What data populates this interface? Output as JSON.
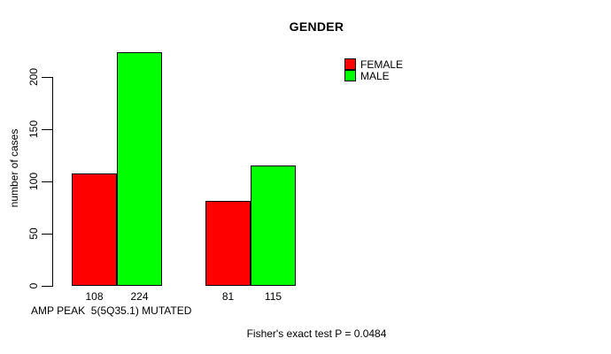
{
  "title": "GENDER",
  "legend": {
    "items": [
      {
        "label": "FEMALE",
        "color": "#ff0000"
      },
      {
        "label": "MALE",
        "color": "#00ff00"
      }
    ]
  },
  "y_axis": {
    "label": "number of cases",
    "ticks": [
      0,
      50,
      100,
      150,
      200
    ]
  },
  "x_axis": {
    "note": "AMP PEAK  5(5Q35.1) MUTATED"
  },
  "footer": {
    "stat_text": "Fisher's exact test P = 0.0484"
  },
  "chart_data": {
    "type": "bar",
    "title": "GENDER",
    "xlabel": "AMP PEAK  5(5Q35.1) MUTATED",
    "ylabel": "number of cases",
    "categories": [
      "AMP PEAK 5(5Q35.1)",
      "MUTATED"
    ],
    "series": [
      {
        "name": "FEMALE",
        "color": "#ff0000",
        "values": [
          108,
          81
        ]
      },
      {
        "name": "MALE",
        "color": "#00ff00",
        "values": [
          224,
          115
        ]
      }
    ],
    "bar_value_labels": [
      "108",
      "224",
      "81",
      "115"
    ],
    "y_ticks": [
      0,
      50,
      100,
      150,
      200
    ],
    "ylim": [
      0,
      224
    ],
    "grid": false,
    "legend_position": "top-right",
    "annotation": "Fisher's exact test P = 0.0484",
    "bar_border_color": "#000000",
    "background_color": "#ffffff"
  }
}
